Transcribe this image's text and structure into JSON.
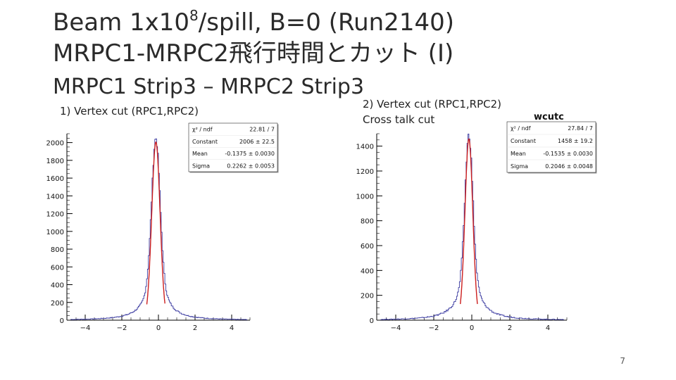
{
  "slide": {
    "title_line1_a": "Beam 1x10",
    "title_line1_sup": "8",
    "title_line1_b": "/spill, B=0 (Run2140)",
    "title_line2": "MRPC1-MRPC2飛行時間とカット (I)",
    "subtitle": "MRPC1 Strip3 – MRPC2 Strip3",
    "caption1": "1) Vertex cut (RPC1,RPC2)",
    "caption2_line1": "2) Vertex cut (RPC1,RPC2)",
    "caption2_line2": "Cross talk cut",
    "page_number": "7"
  },
  "colors": {
    "histogram": "#3a3aa0",
    "fit": "#cc1f1f",
    "axis": "#000000",
    "statbox_border": "#000000"
  },
  "chart_data": [
    {
      "type": "histogram",
      "title": "",
      "xlabel": "",
      "ylabel": "",
      "xlim": [
        -5,
        5
      ],
      "ylim": [
        0,
        2100
      ],
      "x_ticks": [
        -4,
        -2,
        0,
        2,
        4
      ],
      "y_ticks": [
        0,
        200,
        400,
        600,
        800,
        1000,
        1200,
        1400,
        1600,
        1800,
        2000
      ],
      "peak": {
        "x": -0.14,
        "height": 2050
      },
      "fit": {
        "type": "gaussian",
        "constant": 2006,
        "mean": -0.1375,
        "sigma": 0.2262
      },
      "stats": {
        "rows": [
          {
            "label": "χ² / ndf",
            "value": "22.81 / 7"
          },
          {
            "label": "Constant",
            "value": "2006 ± 22.5"
          },
          {
            "label": "Mean",
            "value": "-0.1375 ± 0.0030"
          },
          {
            "label": "Sigma",
            "value": "0.2262 ± 0.0053"
          }
        ]
      }
    },
    {
      "type": "histogram",
      "title": "wcutc",
      "xlabel": "",
      "ylabel": "",
      "xlim": [
        -5,
        5
      ],
      "ylim": [
        0,
        1500
      ],
      "x_ticks": [
        -4,
        -2,
        0,
        2,
        4
      ],
      "y_ticks": [
        0,
        200,
        400,
        600,
        800,
        1000,
        1200,
        1400
      ],
      "peak": {
        "x": -0.15,
        "height": 1490
      },
      "fit": {
        "type": "gaussian",
        "constant": 1458,
        "mean": -0.1535,
        "sigma": 0.2046
      },
      "stats": {
        "rows": [
          {
            "label": "χ² / ndf",
            "value": "27.84 / 7"
          },
          {
            "label": "Constant",
            "value": "1458 ± 19.2"
          },
          {
            "label": "Mean",
            "value": "-0.1535 ± 0.0030"
          },
          {
            "label": "Sigma",
            "value": "0.2046 ± 0.0048"
          }
        ]
      }
    }
  ]
}
